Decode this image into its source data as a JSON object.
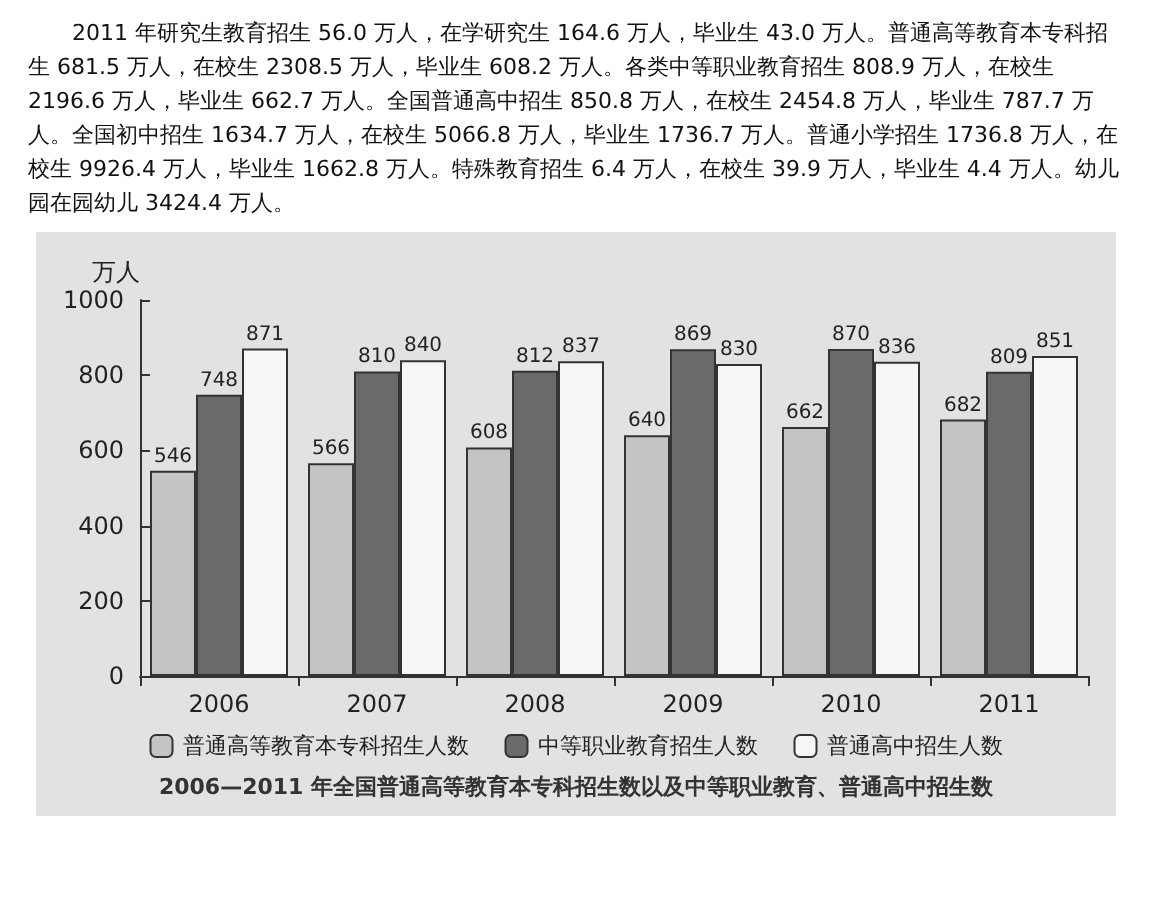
{
  "chart_data": {
    "type": "bar",
    "title": "2006—2011 年全国普通高等教育本专科招生数以及中等职业教育、普通高中招生数",
    "ylabel": "万人",
    "annotations": [
      "2011 年研究生教育招生 56.0 万人，在学研究生 164.6 万人，毕业生 43.0 万人。普通高等教育本专科招生 681.5 万人，在校生 2308.5 万人，毕业生 608.2 万人。各类中等职业教育招生 808.9 万人，在校生 2196.6 万人，毕业生 662.7 万人。全国普通高中招生 850.8 万人，在校生 2454.8 万人，毕业生 787.7 万人。全国初中招生 1634.7 万人，在校生 5066.8 万人，毕业生 1736.7 万人。普通小学招生 1736.8 万人，在校生 9926.4 万人，毕业生 1662.8 万人。特殊教育招生 6.4 万人，在校生 39.9 万人，毕业生 4.4 万人。幼儿园在园幼儿 3424.4 万人。"
    ],
    "categories": [
      "2006",
      "2007",
      "2008",
      "2009",
      "2010",
      "2011"
    ],
    "series": [
      {
        "name": "普通高等教育本专科招生人数",
        "color": "#c4c4c4",
        "values": [
          546,
          566,
          608,
          640,
          662,
          682
        ]
      },
      {
        "name": "中等职业教育招生人数",
        "color": "#6a6a6a",
        "values": [
          748,
          810,
          812,
          869,
          870,
          809
        ]
      },
      {
        "name": "普通高中招生人数",
        "color": "#f6f6f6",
        "values": [
          871,
          840,
          837,
          830,
          836,
          851
        ]
      }
    ],
    "ylim": [
      0,
      1000
    ],
    "yticks": [
      0,
      200,
      400,
      600,
      800,
      1000
    ],
    "grid": false,
    "legend": "bottom",
    "data_labels": true
  }
}
